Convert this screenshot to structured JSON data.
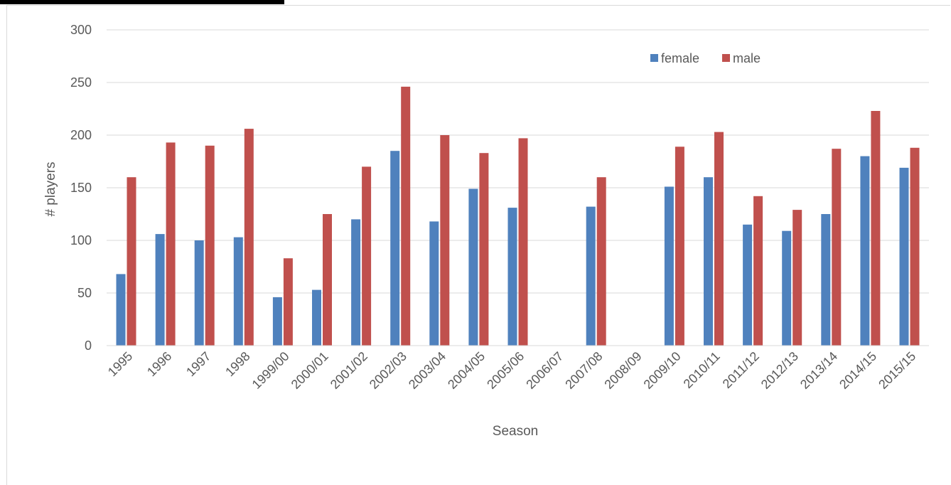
{
  "chart_data": {
    "type": "bar",
    "title": "",
    "xlabel": "Season",
    "ylabel": "# players",
    "ylim": [
      0,
      300
    ],
    "yticks": [
      0,
      50,
      100,
      150,
      200,
      250,
      300
    ],
    "grid": true,
    "legend_position": "top-right",
    "categories": [
      "1995",
      "1996",
      "1997",
      "1998",
      "1999/00",
      "2000/01",
      "2001/02",
      "2002/03",
      "2003/04",
      "2004/05",
      "2005/06",
      "2006/07",
      "2007/08",
      "2008/09",
      "2009/10",
      "2010/11",
      "2011/12",
      "2012/13",
      "2013/14",
      "2014/15",
      "2015/15"
    ],
    "series": [
      {
        "name": "female",
        "color": "#4f81bd",
        "values": [
          68,
          106,
          100,
          103,
          46,
          53,
          120,
          185,
          118,
          149,
          131,
          null,
          132,
          null,
          151,
          160,
          115,
          109,
          125,
          180,
          169
        ]
      },
      {
        "name": "male",
        "color": "#c0504d",
        "values": [
          160,
          193,
          190,
          206,
          83,
          125,
          170,
          246,
          200,
          183,
          197,
          null,
          160,
          null,
          189,
          203,
          142,
          129,
          187,
          223,
          188
        ]
      }
    ]
  }
}
